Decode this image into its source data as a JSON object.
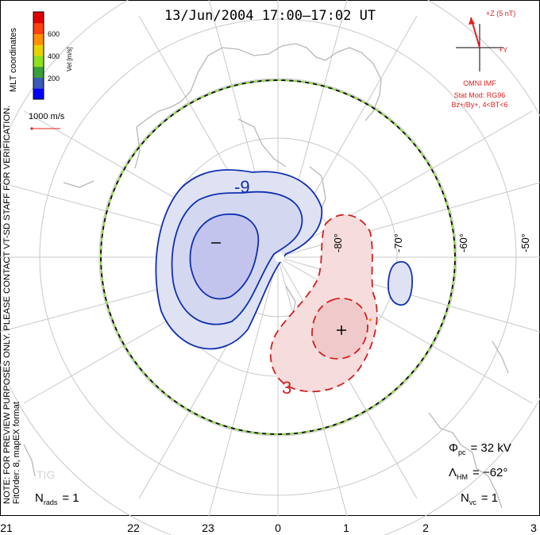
{
  "title": "13/Jun/2004 17:00–17:02 UT",
  "colorbar": {
    "unit_label": "Vel [m/s]",
    "ticks": [
      "600",
      "400",
      "200"
    ],
    "colors": [
      "#0000ff",
      "#3a5ab8",
      "#3aa03a",
      "#8ee020",
      "#e8d200",
      "#ff9000",
      "#ff4010",
      "#e00000"
    ]
  },
  "mlt_label": "MLT coordinates",
  "vector_scale": "1000 m/s",
  "notice": "NOTE: FOR PREVIEW PURPOSES ONLY. PLEASE CONTACT VT-SD STAFF FOR VERIFICATION.",
  "fit_info": "FitOrder: 8, mapEX format",
  "imf": {
    "z_label": "+Z (5 nT)",
    "y_label": "+Y",
    "source": "OMNI IMF",
    "stat_mod": "Stat Mod: RG96",
    "condition": "Bz+/By+, 4<BT<6"
  },
  "contours": {
    "negative": "-9",
    "positive": "3",
    "min_marker": "−",
    "max_marker": "+"
  },
  "latitudes": [
    "-80°",
    "-70°",
    "-60°",
    "-50°"
  ],
  "mlt_ticks": [
    "21",
    "22",
    "23",
    "0",
    "1",
    "2",
    "3"
  ],
  "stats": {
    "phi_symbol": "Φ",
    "phi_sub": "pc",
    "phi_value": "= 32 kV",
    "lambda_symbol": "Λ",
    "lambda_sub": "HM",
    "lambda_value": "= −62°",
    "nrads_sym": "N",
    "nrads_sub": "rads",
    "nrads_value": "= 1",
    "nvc_sym": "N",
    "nvc_sub": "vc",
    "nvc_value": "= 1"
  },
  "station": "TIG",
  "colors": {
    "neg_contour": "#1030b0",
    "pos_contour": "#d02020",
    "neg_fill": "#dfe2f2",
    "neg_fill_inner": "#c2c4ee",
    "pos_fill": "#f6dcdc",
    "pos_fill_inner": "#f0caca",
    "hm_boundary_a": "#111111",
    "hm_boundary_b": "#90e040",
    "land": "#b8b8b8",
    "grid": "#c8c8c8"
  }
}
